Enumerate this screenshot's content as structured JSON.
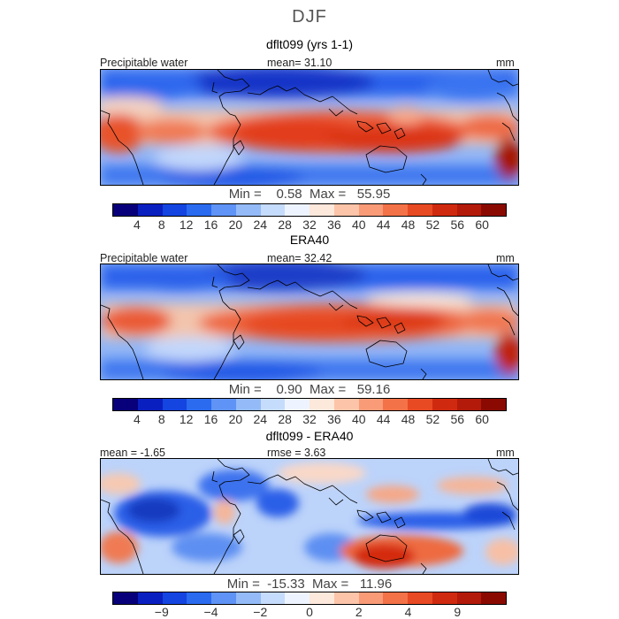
{
  "title": "DJF",
  "panels": [
    {
      "title": "dflt099 (yrs 1-1)",
      "left_label": "Precipitable water",
      "center_label": "mean=   31.10",
      "units": "mm",
      "stats": "Min =    0.58  Max =   55.95",
      "colorbar": {
        "colors": [
          "#08007a",
          "#0a1fc0",
          "#1445e0",
          "#2a6bf0",
          "#5f93f5",
          "#94bbf8",
          "#c6dcfc",
          "#eef4ff",
          "#fde8dc",
          "#fcc4a8",
          "#fa9b78",
          "#f47248",
          "#e84a24",
          "#cf2a10",
          "#b31a0a",
          "#8a0a02"
        ],
        "ticks": [
          "4",
          "8",
          "12",
          "16",
          "20",
          "24",
          "28",
          "32",
          "36",
          "40",
          "44",
          "48",
          "52",
          "56",
          "60"
        ]
      }
    },
    {
      "title": "ERA40",
      "left_label": "Precipitable water",
      "center_label": "mean=   32.42",
      "units": "mm",
      "stats": "Min =    0.90  Max =   59.16",
      "colorbar": {
        "colors": [
          "#08007a",
          "#0a1fc0",
          "#1445e0",
          "#2a6bf0",
          "#5f93f5",
          "#94bbf8",
          "#c6dcfc",
          "#eef4ff",
          "#fde8dc",
          "#fcc4a8",
          "#fa9b78",
          "#f47248",
          "#e84a24",
          "#cf2a10",
          "#b31a0a",
          "#8a0a02"
        ],
        "ticks": [
          "4",
          "8",
          "12",
          "16",
          "20",
          "24",
          "28",
          "32",
          "36",
          "40",
          "44",
          "48",
          "52",
          "56",
          "60"
        ]
      }
    },
    {
      "title": "dflt099 - ERA40",
      "left_label": "mean =   -1.65",
      "center_label": "rmse =    3.63",
      "units": "mm",
      "stats": "Min =  -15.33  Max =   11.96",
      "colorbar": {
        "colors": [
          "#08007a",
          "#0a1fc0",
          "#1445e0",
          "#2a6bf0",
          "#5f93f5",
          "#94bbf8",
          "#c6dcfc",
          "#eef4ff",
          "#fde8dc",
          "#fcc4a8",
          "#fa9b78",
          "#f47248",
          "#e84a24",
          "#cf2a10",
          "#b31a0a",
          "#8a0a02"
        ],
        "ticks": [
          "−9",
          "−4",
          "−2",
          "0",
          "2",
          "4",
          "9"
        ]
      }
    }
  ]
}
